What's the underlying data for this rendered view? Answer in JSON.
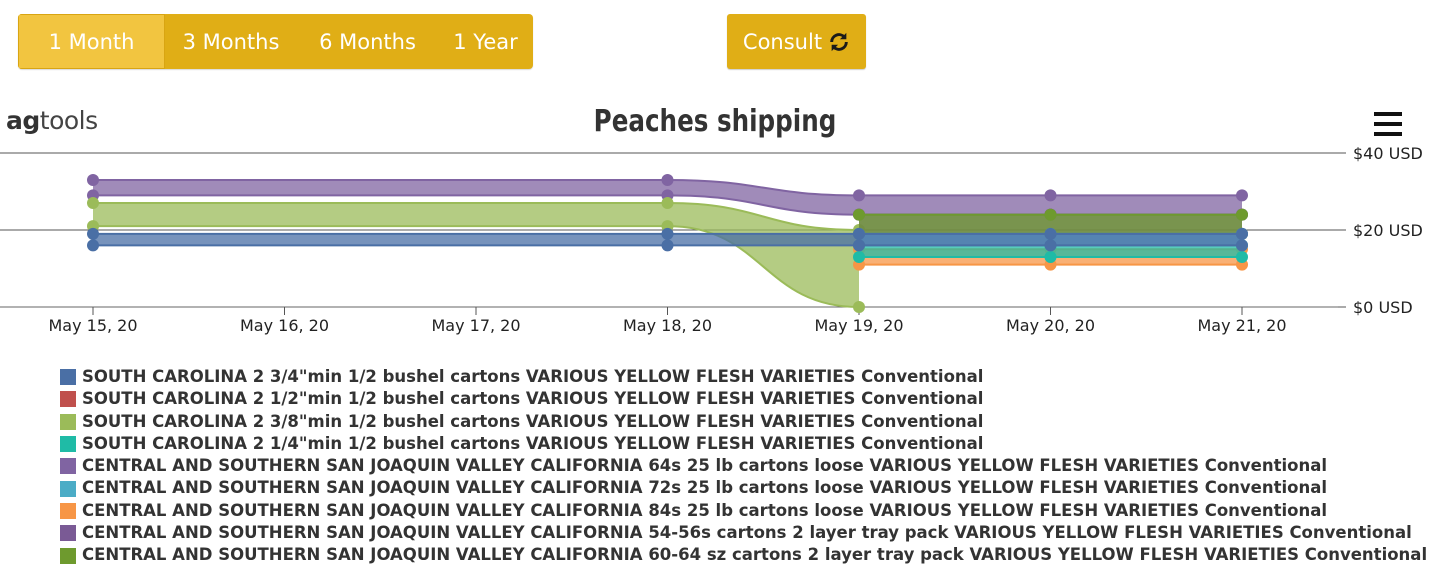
{
  "range_buttons": [
    {
      "label": "1 Month",
      "active": true
    },
    {
      "label": "3 Months",
      "active": false
    },
    {
      "label": "6 Months",
      "active": false
    },
    {
      "label": "1 Year",
      "active": false
    }
  ],
  "consult": {
    "label": "Consult",
    "icon": "refresh-icon"
  },
  "logo": {
    "prefix": "ag",
    "suffix": "tools"
  },
  "menu": {
    "icon": "hamburger-menu-icon"
  },
  "chart_data": {
    "type": "area",
    "subtype": "arearange",
    "title": "Peaches shipping",
    "categories": [
      "May 15, 20",
      "May 16, 20",
      "May 17, 20",
      "May 18, 20",
      "May 19, 20",
      "May 20, 20",
      "May 21, 20"
    ],
    "x_index": [
      0,
      1,
      2,
      3,
      4,
      5,
      6
    ],
    "yaxis": {
      "position": "right",
      "ticks": [
        "$0 USD",
        "$20 USD",
        "$40 USD"
      ],
      "tick_values": [
        0,
        20,
        40
      ],
      "ylim": [
        0,
        40
      ]
    },
    "grid": true,
    "legend_position": "bottom",
    "series": [
      {
        "name": "SOUTH CAROLINA 2 3/4\"min 1/2 bushel cartons VARIOUS YELLOW FLESH VARIETIES Conventional",
        "color": "#4a6fa5",
        "x": [
          0,
          3,
          4,
          5,
          6
        ],
        "low": [
          16,
          16,
          16,
          16,
          16
        ],
        "high": [
          19,
          19,
          19,
          19,
          19
        ]
      },
      {
        "name": "SOUTH CAROLINA 2 1/2\"min 1/2 bushel cartons VARIOUS YELLOW FLESH VARIETIES Conventional",
        "color": "#c0504d",
        "x": [],
        "low": [],
        "high": []
      },
      {
        "name": "SOUTH CAROLINA 2 3/8\"min 1/2 bushel cartons VARIOUS YELLOW FLESH VARIETIES Conventional",
        "color": "#9bbb59",
        "x": [
          0,
          3,
          4,
          5,
          6
        ],
        "low": [
          21,
          21,
          0,
          null,
          null
        ],
        "high": [
          27,
          27,
          20,
          null,
          null
        ]
      },
      {
        "name": "SOUTH CAROLINA 2 1/4\"min 1/2 bushel cartons VARIOUS YELLOW FLESH VARIETIES Conventional",
        "color": "#1fbba6",
        "x": [
          4,
          5,
          6
        ],
        "low": [
          13,
          13,
          13
        ],
        "high": [
          16,
          16,
          16
        ]
      },
      {
        "name": "CENTRAL AND SOUTHERN SAN JOAQUIN VALLEY CALIFORNIA 64s 25 lb cartons loose VARIOUS YELLOW FLESH VARIETIES Conventional",
        "color": "#8064a2",
        "x": [
          0,
          3,
          4,
          5,
          6
        ],
        "low": [
          29,
          29,
          24,
          24,
          24
        ],
        "high": [
          33,
          33,
          29,
          29,
          29
        ]
      },
      {
        "name": "CENTRAL AND SOUTHERN SAN JOAQUIN VALLEY CALIFORNIA 72s 25 lb cartons loose VARIOUS YELLOW FLESH VARIETIES Conventional",
        "color": "#4bacc6",
        "x": [
          4,
          5,
          6
        ],
        "low": [
          16,
          16,
          16
        ],
        "high": [
          19,
          19,
          19
        ]
      },
      {
        "name": "CENTRAL AND SOUTHERN SAN JOAQUIN VALLEY CALIFORNIA 84s 25 lb cartons loose VARIOUS YELLOW FLESH VARIETIES Conventional",
        "color": "#f79646",
        "x": [
          4,
          5,
          6
        ],
        "low": [
          11,
          11,
          11
        ],
        "high": [
          15,
          15,
          15
        ]
      },
      {
        "name": "CENTRAL AND SOUTHERN SAN JOAQUIN VALLEY CALIFORNIA 54-56s cartons 2 layer tray pack VARIOUS YELLOW FLESH VARIETIES Conventional",
        "color": "#7a5a95",
        "x": [
          4,
          5,
          6
        ],
        "low": [
          19,
          19,
          19
        ],
        "high": [
          24,
          24,
          24
        ]
      },
      {
        "name": "CENTRAL AND SOUTHERN SAN JOAQUIN VALLEY CALIFORNIA 60-64 sz cartons 2 layer tray pack VARIOUS YELLOW FLESH VARIETIES Conventional",
        "color": "#6e9a2e",
        "x": [
          4,
          5,
          6
        ],
        "low": [
          19,
          19,
          19
        ],
        "high": [
          24,
          24,
          24
        ]
      }
    ]
  }
}
